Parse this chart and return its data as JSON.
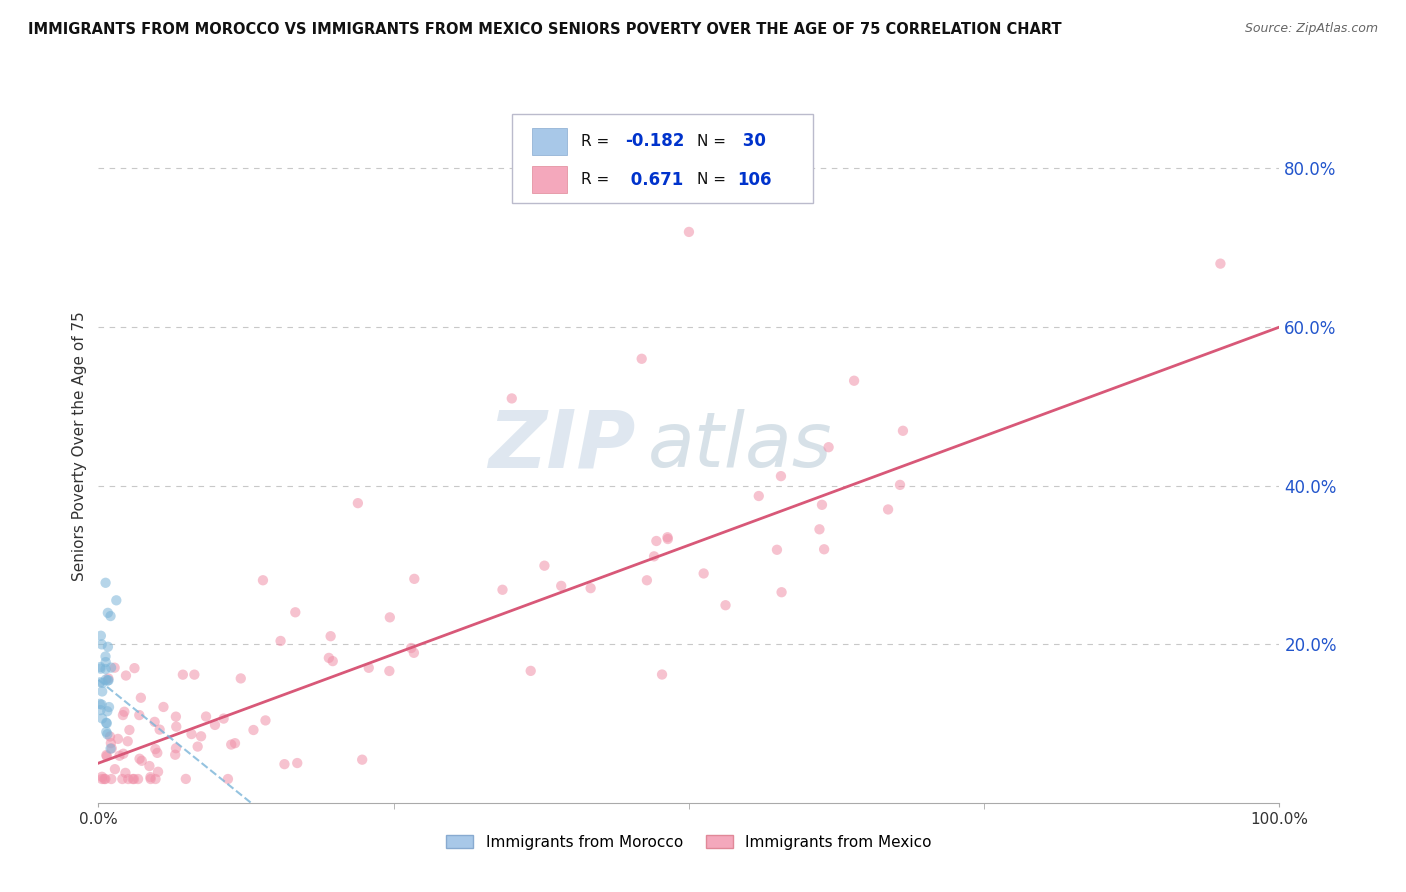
{
  "title": "IMMIGRANTS FROM MOROCCO VS IMMIGRANTS FROM MEXICO SENIORS POVERTY OVER THE AGE OF 75 CORRELATION CHART",
  "source": "Source: ZipAtlas.com",
  "ylabel": "Seniors Poverty Over the Age of 75",
  "y_tick_labels": [
    "20.0%",
    "40.0%",
    "60.0%",
    "80.0%"
  ],
  "y_tick_values": [
    0.2,
    0.4,
    0.6,
    0.8
  ],
  "legend_entries": [
    {
      "label": "Immigrants from Morocco",
      "R": "-0.182",
      "N": "30",
      "color": "#a8c8e8"
    },
    {
      "label": "Immigrants from Mexico",
      "R": "0.671",
      "N": "106",
      "color": "#f4a0b8"
    }
  ],
  "bg_color": "#ffffff",
  "scatter_alpha": 0.55,
  "scatter_size": 55,
  "morocco_color": "#7ab4d8",
  "mexico_color": "#f090a8",
  "morocco_line_color": "#7ab4d8",
  "mexico_line_color": "#d85878",
  "watermark_zip_color": "#c8d4e0",
  "watermark_atlas_color": "#a8b8cc",
  "grid_color": "#c8c8c8",
  "ytick_color": "#2255cc",
  "legend_R_color": "#222222",
  "legend_RV_color": "#0033cc",
  "legend_N_color": "#222222",
  "legend_NV_color": "#0033cc"
}
